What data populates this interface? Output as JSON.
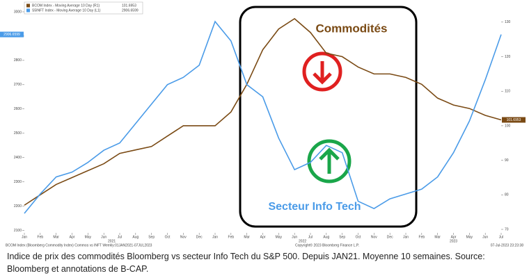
{
  "chart_data": {
    "type": "line",
    "categories": [
      "Jan",
      "Feb",
      "Mar",
      "Apr",
      "May",
      "Jun",
      "Jul",
      "Aug",
      "Sep",
      "Oct",
      "Nov",
      "Dec",
      "Jan",
      "Feb",
      "Mar",
      "Apr",
      "May",
      "Jun",
      "Jul",
      "Aug",
      "Sep",
      "Oct",
      "Nov",
      "Dec",
      "Jan",
      "Feb",
      "Mar",
      "Apr",
      "May",
      "Jun",
      "Jul"
    ],
    "year_labels": [
      "2021",
      "2022",
      "2023"
    ],
    "series": [
      {
        "name": "BCOM Index - Moving Average 10 Day (R1)",
        "color": "#7a4a14",
        "axis": "y2",
        "values": [
          77,
          80,
          83,
          85,
          87,
          89,
          92,
          93,
          94,
          97,
          100,
          100,
          100,
          104,
          112,
          122,
          128,
          131,
          127,
          121,
          120,
          117,
          115,
          115,
          114,
          112,
          108,
          106,
          105,
          103,
          101.6953
        ]
      },
      {
        "name": "S5INFT Index - Moving Average 10 Day (L1)",
        "color": "#4a9be8",
        "values": [
          2170,
          2250,
          2320,
          2340,
          2380,
          2430,
          2460,
          2540,
          2620,
          2700,
          2730,
          2780,
          2960,
          2880,
          2700,
          2650,
          2480,
          2350,
          2380,
          2450,
          2420,
          2220,
          2190,
          2230,
          2250,
          2270,
          2320,
          2420,
          2550,
          2720,
          2906.6599
        ]
      }
    ],
    "ylim": [
      2090,
      3040
    ],
    "yticks": [
      2100,
      2200,
      2300,
      2400,
      2500,
      2600,
      2700,
      2800,
      2900,
      3000
    ],
    "y2lim": [
      69,
      135.8
    ],
    "y2ticks": [
      70,
      80,
      90,
      100,
      110,
      120,
      130
    ],
    "annotations": {
      "commodities": "Commodités",
      "tech": "Secteur Info Tech"
    },
    "footer": {
      "left": "BCOM Index (Bloomberg Commodity Index) Commos vs INFT  Weekly:01JAN2021-07JUL2023",
      "center": "Copyright© 2023 Bloomberg Finance L.P.",
      "right": "07-Jul-2023 23:23:38"
    },
    "caption": "Indice de prix des commodités Bloomberg vs secteur Info Tech du S&P 500. Depuis JAN21. Moyenne 10 semaines.  Source: Bloomberg et annotations de B-CAP."
  }
}
